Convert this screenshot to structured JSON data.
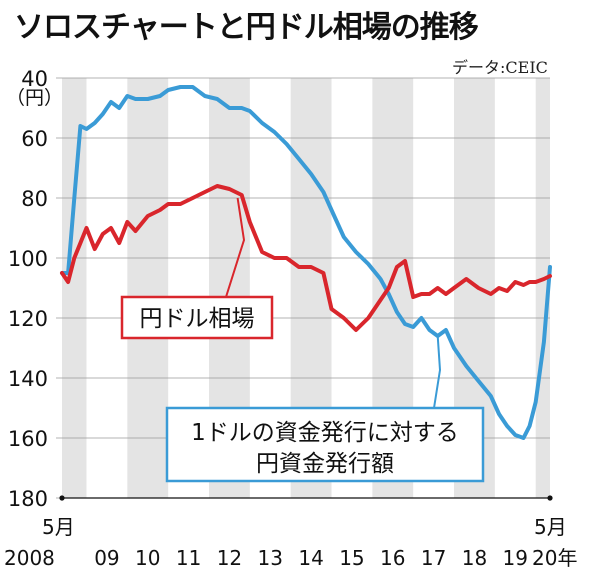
{
  "title": "ソロスチャートと円ドル相場の推移",
  "source": "データ:CEIC",
  "chart_data": {
    "type": "line",
    "unit_label": "（円）",
    "ylim": [
      40,
      180
    ],
    "y_reversed": true,
    "y_ticks": [
      "40",
      "60",
      "80",
      "100",
      "120",
      "140",
      "160",
      "180"
    ],
    "x_start_label": [
      "5月",
      "2008"
    ],
    "x_end_label": [
      "5月",
      "20年"
    ],
    "x_tick_labels": [
      "09",
      "10",
      "11",
      "12",
      "13",
      "14",
      "15",
      "16",
      "17",
      "18",
      "19"
    ],
    "colors": {
      "soros": "#3a9bd6",
      "usdjpy": "#d9262c",
      "band": "#e4e4e4"
    },
    "series": [
      {
        "name": "1ドルの資金発行に対する円資金発行額",
        "label_lines": [
          "1ドルの資金発行に対する",
          "円資金発行額"
        ],
        "x": [
          2008.4,
          2008.55,
          2008.7,
          2008.85,
          2009.0,
          2009.2,
          2009.4,
          2009.6,
          2009.8,
          2010.0,
          2010.2,
          2010.5,
          2010.8,
          2011.0,
          2011.3,
          2011.6,
          2011.9,
          2012.2,
          2012.5,
          2012.8,
          2013.0,
          2013.3,
          2013.6,
          2013.9,
          2014.2,
          2014.5,
          2014.8,
          2015.0,
          2015.3,
          2015.6,
          2015.9,
          2016.2,
          2016.4,
          2016.6,
          2016.8,
          2017.0,
          2017.2,
          2017.4,
          2017.6,
          2017.8,
          2018.0,
          2018.3,
          2018.6,
          2018.9,
          2019.1,
          2019.3,
          2019.5,
          2019.7,
          2019.85,
          2020.0,
          2020.2,
          2020.35
        ],
        "y": [
          105,
          105,
          80,
          56,
          57,
          55,
          52,
          48,
          50,
          46,
          47,
          47,
          46,
          44,
          43,
          43,
          46,
          47,
          50,
          50,
          51,
          55,
          58,
          62,
          67,
          72,
          78,
          84,
          93,
          98,
          102,
          107,
          112,
          118,
          122,
          123,
          120,
          124,
          126,
          124,
          130,
          136,
          141,
          146,
          152,
          156,
          159,
          160,
          156,
          148,
          128,
          103
        ]
      },
      {
        "name": "円ドル相場",
        "x": [
          2008.4,
          2008.55,
          2008.7,
          2008.85,
          2009.0,
          2009.2,
          2009.4,
          2009.6,
          2009.8,
          2010.0,
          2010.2,
          2010.5,
          2010.8,
          2011.0,
          2011.3,
          2011.6,
          2011.9,
          2012.2,
          2012.5,
          2012.8,
          2013.0,
          2013.3,
          2013.6,
          2013.9,
          2014.2,
          2014.5,
          2014.8,
          2015.0,
          2015.3,
          2015.6,
          2015.9,
          2016.2,
          2016.4,
          2016.6,
          2016.8,
          2017.0,
          2017.2,
          2017.4,
          2017.6,
          2017.8,
          2018.0,
          2018.3,
          2018.6,
          2018.9,
          2019.1,
          2019.3,
          2019.5,
          2019.7,
          2019.85,
          2020.0,
          2020.2,
          2020.35
        ],
        "y": [
          105,
          108,
          100,
          95,
          90,
          97,
          92,
          90,
          95,
          88,
          91,
          86,
          84,
          82,
          82,
          80,
          78,
          76,
          77,
          79,
          88,
          98,
          100,
          100,
          103,
          103,
          105,
          117,
          120,
          124,
          120,
          114,
          110,
          103,
          101,
          113,
          112,
          112,
          110,
          112,
          110,
          107,
          110,
          112,
          110,
          111,
          108,
          109,
          108,
          108,
          107,
          106
        ]
      }
    ]
  }
}
